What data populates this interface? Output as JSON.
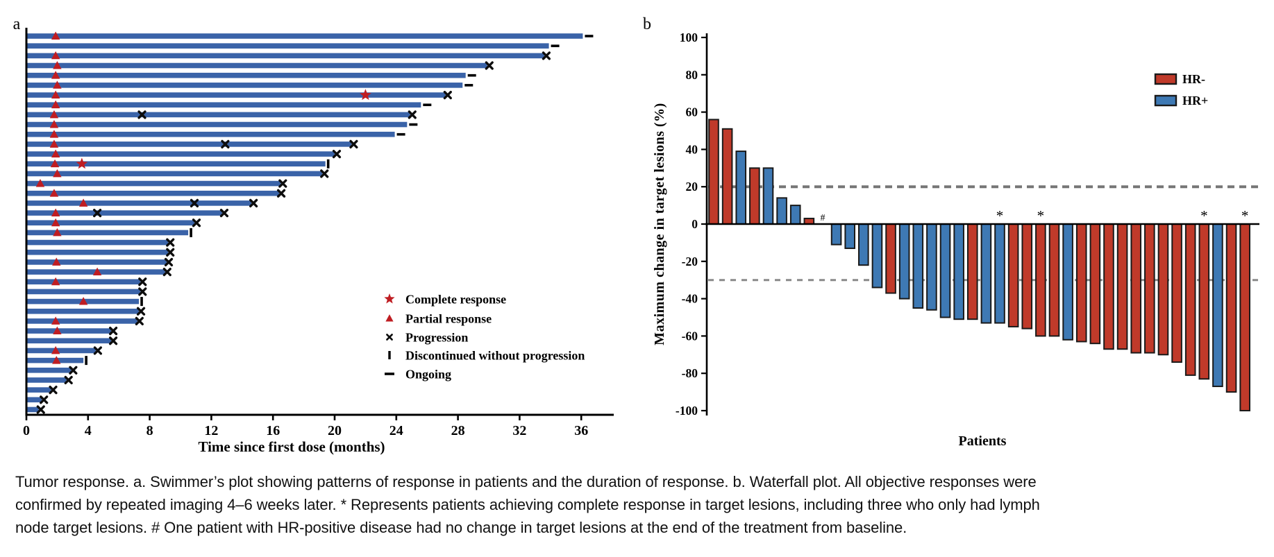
{
  "panels": {
    "a": {
      "label": "a",
      "x_axis_title": "Time since first dose (months)",
      "legend": [
        {
          "symbol": "star",
          "label": "Complete response"
        },
        {
          "symbol": "triangle",
          "label": "Partial response"
        },
        {
          "symbol": "cross",
          "label": "Progression"
        },
        {
          "symbol": "bar",
          "label": "Discontinued without progression"
        },
        {
          "symbol": "dash",
          "label": "Ongoing"
        }
      ]
    },
    "b": {
      "label": "b",
      "y_axis_title": "Maximum change in target lesions (%)",
      "x_axis_title": "Patients",
      "legend": [
        {
          "label": "HR-",
          "color": "#c03a2a"
        },
        {
          "label": "HR+",
          "color": "#3e79b4"
        }
      ]
    }
  },
  "chart_data": [
    {
      "type": "bar",
      "id": "swimmer",
      "orientation": "horizontal",
      "xlabel": "Time since first dose (months)",
      "x_ticks": [
        0,
        4,
        8,
        12,
        16,
        20,
        24,
        28,
        32,
        36
      ],
      "xlim": [
        0,
        38
      ],
      "grid": false,
      "rows": [
        {
          "duration": 36.1,
          "end_marker": "ongoing",
          "partial_response_at": 1.9
        },
        {
          "duration": 33.9,
          "end_marker": "ongoing"
        },
        {
          "duration": 33.6,
          "end_marker": "progression",
          "partial_response_at": 1.9
        },
        {
          "duration": 29.9,
          "end_marker": "progression",
          "partial_response_at": 2.0
        },
        {
          "duration": 28.5,
          "end_marker": "ongoing",
          "partial_response_at": 1.9
        },
        {
          "duration": 28.3,
          "end_marker": "ongoing",
          "partial_response_at": 2.0
        },
        {
          "duration": 27.2,
          "end_marker": "progression",
          "partial_response_at": 1.9,
          "complete_response_at": 22.0
        },
        {
          "duration": 25.6,
          "end_marker": "ongoing",
          "partial_response_at": 1.9
        },
        {
          "duration": 24.9,
          "end_marker": "progression",
          "partial_response_at": 1.8,
          "progression_at": [
            7.5
          ]
        },
        {
          "duration": 24.7,
          "end_marker": "ongoing",
          "partial_response_at": 1.8
        },
        {
          "duration": 23.9,
          "end_marker": "ongoing",
          "partial_response_at": 1.8
        },
        {
          "duration": 21.1,
          "end_marker": "progression",
          "partial_response_at": 1.8,
          "progression_at": [
            12.9
          ]
        },
        {
          "duration": 20.0,
          "end_marker": "progression",
          "partial_response_at": 1.9
        },
        {
          "duration": 19.4,
          "end_marker": "discontinued",
          "partial_response_at": 1.85,
          "complete_response_at": 3.6
        },
        {
          "duration": 19.2,
          "end_marker": "progression",
          "partial_response_at": 2.0
        },
        {
          "duration": 16.5,
          "end_marker": "progression",
          "partial_response_at": 0.9
        },
        {
          "duration": 16.4,
          "end_marker": "progression",
          "partial_response_at": 1.8
        },
        {
          "duration": 14.6,
          "end_marker": "progression",
          "partial_response_at": 3.7,
          "progression_at": [
            10.9
          ]
        },
        {
          "duration": 12.7,
          "end_marker": "progression",
          "partial_response_at": 1.9,
          "progression_at": [
            4.6
          ]
        },
        {
          "duration": 10.9,
          "end_marker": "progression",
          "partial_response_at": 1.9
        },
        {
          "duration": 10.5,
          "end_marker": "discontinued",
          "partial_response_at": 2.0
        },
        {
          "duration": 9.2,
          "end_marker": "progression"
        },
        {
          "duration": 9.2,
          "end_marker": "progression"
        },
        {
          "duration": 9.1,
          "end_marker": "progression",
          "partial_response_at": 1.95
        },
        {
          "duration": 9.0,
          "end_marker": "progression",
          "partial_response_at": 4.6
        },
        {
          "duration": 7.4,
          "end_marker": "progression",
          "partial_response_at": 1.9
        },
        {
          "duration": 7.4,
          "end_marker": "progression"
        },
        {
          "duration": 7.3,
          "end_marker": "discontinued",
          "partial_response_at": 3.7
        },
        {
          "duration": 7.3,
          "end_marker": "progression"
        },
        {
          "duration": 7.2,
          "end_marker": "progression",
          "partial_response_at": 1.9
        },
        {
          "duration": 5.5,
          "end_marker": "progression",
          "partial_response_at": 2.0
        },
        {
          "duration": 5.5,
          "end_marker": "progression"
        },
        {
          "duration": 4.5,
          "end_marker": "progression",
          "partial_response_at": 1.9
        },
        {
          "duration": 3.7,
          "end_marker": "discontinued",
          "partial_response_at": 1.95
        },
        {
          "duration": 2.9,
          "end_marker": "progression"
        },
        {
          "duration": 2.6,
          "end_marker": "progression"
        },
        {
          "duration": 1.6,
          "end_marker": "progression"
        },
        {
          "duration": 1.0,
          "end_marker": "progression"
        },
        {
          "duration": 0.8,
          "end_marker": "progression"
        }
      ]
    },
    {
      "type": "bar",
      "id": "waterfall",
      "ylabel": "Maximum change in target lesions (%)",
      "xlabel": "Patients",
      "ylim": [
        -100,
        100
      ],
      "y_ticks": [
        100,
        80,
        60,
        40,
        20,
        0,
        -20,
        -40,
        -60,
        -80,
        -100
      ],
      "reference_lines": [
        20,
        -30
      ],
      "legend_position": "upper-right",
      "patients": [
        {
          "value": 56,
          "group": "HR-"
        },
        {
          "value": 51,
          "group": "HR-"
        },
        {
          "value": 39,
          "group": "HR+"
        },
        {
          "value": 30,
          "group": "HR-"
        },
        {
          "value": 30,
          "group": "HR+"
        },
        {
          "value": 14,
          "group": "HR+"
        },
        {
          "value": 10,
          "group": "HR+"
        },
        {
          "value": 3,
          "group": "HR-"
        },
        {
          "value": 0,
          "group": "HR+",
          "annotation": "#"
        },
        {
          "value": -11,
          "group": "HR+"
        },
        {
          "value": -13,
          "group": "HR+"
        },
        {
          "value": -22,
          "group": "HR+"
        },
        {
          "value": -34,
          "group": "HR+"
        },
        {
          "value": -37,
          "group": "HR-"
        },
        {
          "value": -40,
          "group": "HR+"
        },
        {
          "value": -45,
          "group": "HR+"
        },
        {
          "value": -46,
          "group": "HR+"
        },
        {
          "value": -50,
          "group": "HR+"
        },
        {
          "value": -51,
          "group": "HR+"
        },
        {
          "value": -51,
          "group": "HR-"
        },
        {
          "value": -53,
          "group": "HR+"
        },
        {
          "value": -53,
          "group": "HR+",
          "annotation": "*"
        },
        {
          "value": -55,
          "group": "HR-"
        },
        {
          "value": -56,
          "group": "HR-"
        },
        {
          "value": -60,
          "group": "HR-",
          "annotation": "*"
        },
        {
          "value": -60,
          "group": "HR-"
        },
        {
          "value": -62,
          "group": "HR+"
        },
        {
          "value": -63,
          "group": "HR-"
        },
        {
          "value": -64,
          "group": "HR-"
        },
        {
          "value": -67,
          "group": "HR-"
        },
        {
          "value": -67,
          "group": "HR-"
        },
        {
          "value": -69,
          "group": "HR-"
        },
        {
          "value": -69,
          "group": "HR-"
        },
        {
          "value": -70,
          "group": "HR-"
        },
        {
          "value": -74,
          "group": "HR-"
        },
        {
          "value": -81,
          "group": "HR-"
        },
        {
          "value": -83,
          "group": "HR-",
          "annotation": "*"
        },
        {
          "value": -87,
          "group": "HR+"
        },
        {
          "value": -90,
          "group": "HR-"
        },
        {
          "value": -100,
          "group": "HR-",
          "annotation": "*"
        }
      ]
    }
  ],
  "caption": {
    "line1": "Tumor response. a. Swimmer’s plot showing patterns of response in patients and the duration of response. b. Waterfall plot. All objective responses were",
    "line2": "confirmed by repeated imaging 4–6 weeks later. * Represents patients achieving complete response in target lesions, including three who only had lymph",
    "line3": "node target lesions. # One patient with HR-positive disease had no change in target lesions at the end of the treatment from baseline."
  },
  "colors": {
    "swimmer_bar": "#3a63a8",
    "marker_red": "#bf1d22",
    "hr_neg": "#c03a2a",
    "hr_pos": "#3e79b4",
    "axis": "#000000",
    "outline": "#1a1a1a",
    "ref_dash": "#767676"
  }
}
